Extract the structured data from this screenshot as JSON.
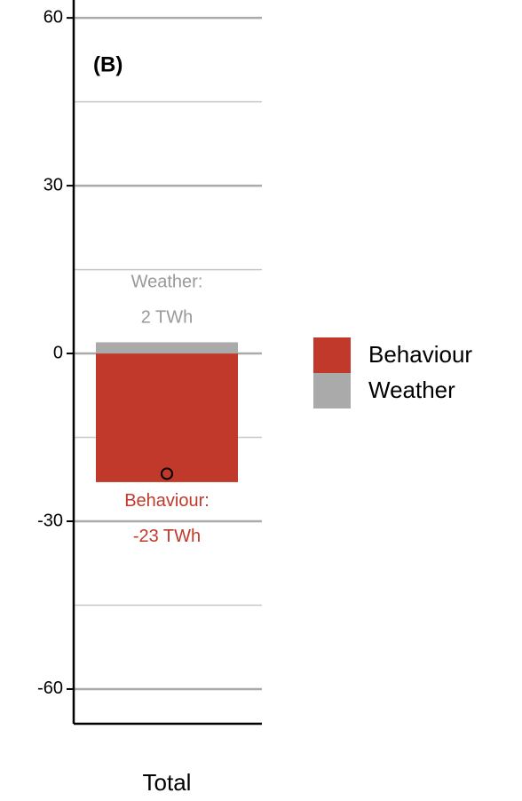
{
  "chart_data": {
    "type": "bar",
    "stacked": true,
    "panel_label": "(B)",
    "categories": [
      "Total"
    ],
    "series": [
      {
        "name": "Behaviour",
        "color": "#c0392b",
        "values": [
          -23
        ],
        "value_labels": [
          "-23 TWh"
        ],
        "label_title": "Behaviour:"
      },
      {
        "name": "Weather",
        "color": "#aaaaaa",
        "values": [
          2
        ],
        "value_labels": [
          "2 TWh"
        ],
        "label_title": "Weather:"
      }
    ],
    "point": {
      "values": [
        -21.5
      ]
    },
    "ylim": [
      -66.2,
      63.2
    ],
    "yticks": [
      60,
      30,
      0,
      -30,
      -60
    ],
    "minor_yticks": [
      45,
      15,
      -15,
      -45
    ],
    "grid": true,
    "legend": "right"
  }
}
